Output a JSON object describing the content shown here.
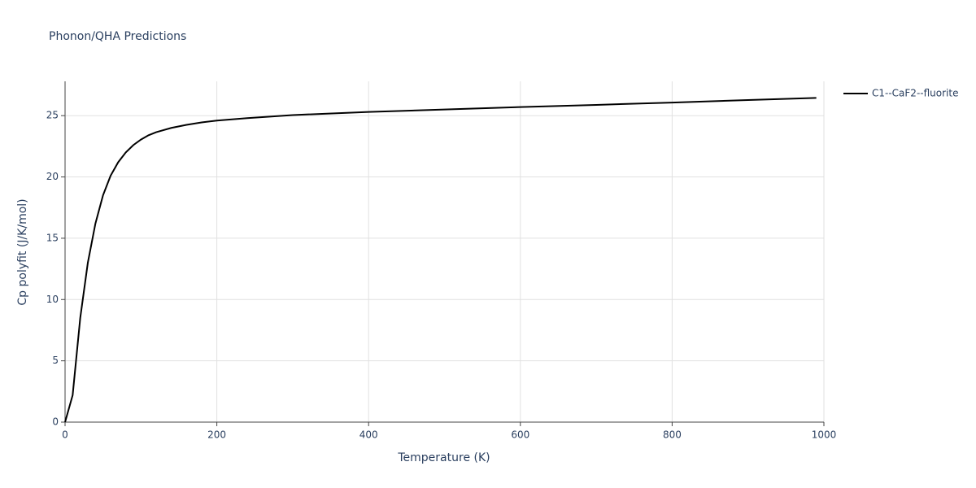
{
  "chart_data": {
    "type": "line",
    "title": "Phonon/QHA Predictions",
    "x_label": "Temperature (K)",
    "y_label": "Cp polyfit (J/K/mol)",
    "x": [
      0,
      10,
      20,
      30,
      40,
      50,
      60,
      70,
      80,
      90,
      100,
      110,
      120,
      140,
      160,
      180,
      200,
      240,
      300,
      400,
      500,
      600,
      700,
      800,
      900,
      990
    ],
    "series": [
      {
        "name": "C1--CaF2--fluorite",
        "color": "#000000",
        "values": [
          0,
          2.2,
          8.5,
          13,
          16.2,
          18.5,
          20.1,
          21.2,
          22,
          22.6,
          23.05,
          23.4,
          23.65,
          24.0,
          24.25,
          24.45,
          24.6,
          24.8,
          25.05,
          25.3,
          25.5,
          25.7,
          25.88,
          26.07,
          26.27,
          26.45
        ]
      }
    ],
    "xlim": [
      0,
      1000
    ],
    "xticks": [
      0,
      200,
      400,
      600,
      800,
      1000
    ],
    "ylim": [
      0,
      27.8
    ],
    "yticks": [
      0,
      5,
      10,
      15,
      20,
      25
    ],
    "grid": true,
    "legend": "right"
  }
}
